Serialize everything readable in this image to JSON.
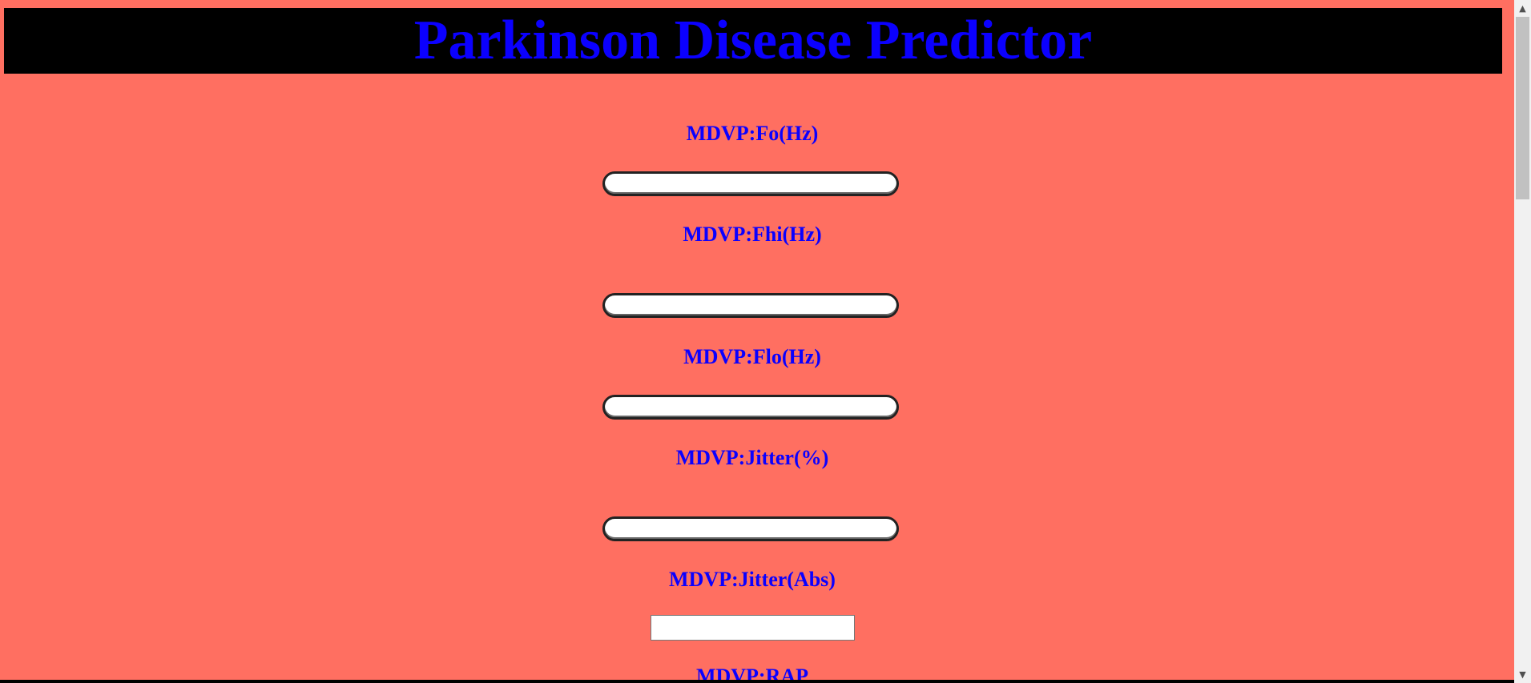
{
  "header": {
    "title": "Parkinson Disease Predictor"
  },
  "form": {
    "fields": [
      {
        "label": "MDVP:Fo(Hz)",
        "value": "",
        "placeholder": ""
      },
      {
        "label": "MDVP:Fhi(Hz)",
        "value": "",
        "placeholder": ""
      },
      {
        "label": "MDVP:Flo(Hz)",
        "value": "",
        "placeholder": ""
      },
      {
        "label": "MDVP:Jitter(%)",
        "value": "",
        "placeholder": ""
      },
      {
        "label": "MDVP:Jitter(Abs)",
        "value": "",
        "placeholder": ""
      },
      {
        "label": "MDVP:RAP"
      }
    ]
  },
  "colors": {
    "background": "#ff6f61",
    "header_background": "#000000",
    "text": "#0b00ff"
  },
  "scrollbar": {
    "up_icon": "arrow-up-icon",
    "down_icon": "arrow-down-icon"
  }
}
